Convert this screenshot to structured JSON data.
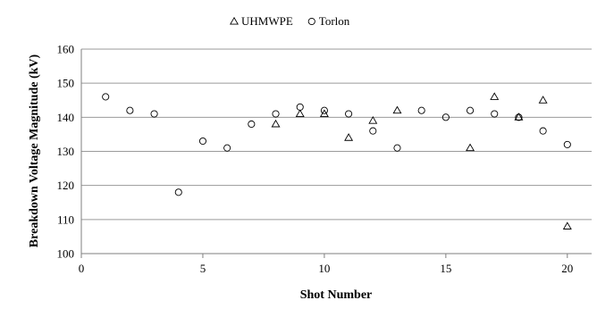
{
  "chart_data": {
    "type": "scatter",
    "title": "",
    "xlabel": "Shot Number",
    "ylabel": "Breakdown Voltage Magnitude (kV)",
    "xlim": [
      0,
      21
    ],
    "ylim": [
      100,
      160
    ],
    "xticks": [
      0,
      5,
      10,
      15,
      20
    ],
    "yticks": [
      100,
      110,
      120,
      130,
      140,
      150,
      160
    ],
    "grid": "horizontal",
    "legend_position": "top-center",
    "series": [
      {
        "name": "UHMWPE",
        "marker": "triangle",
        "color": "#000000",
        "points": [
          {
            "x": 8,
            "y": 138
          },
          {
            "x": 9,
            "y": 141
          },
          {
            "x": 10,
            "y": 141
          },
          {
            "x": 11,
            "y": 134
          },
          {
            "x": 12,
            "y": 139
          },
          {
            "x": 13,
            "y": 142
          },
          {
            "x": 16,
            "y": 131
          },
          {
            "x": 17,
            "y": 146
          },
          {
            "x": 18,
            "y": 140
          },
          {
            "x": 19,
            "y": 145
          },
          {
            "x": 20,
            "y": 108
          }
        ]
      },
      {
        "name": "Torlon",
        "marker": "circle",
        "color": "#000000",
        "points": [
          {
            "x": 1,
            "y": 146
          },
          {
            "x": 2,
            "y": 142
          },
          {
            "x": 3,
            "y": 141
          },
          {
            "x": 4,
            "y": 118
          },
          {
            "x": 5,
            "y": 133
          },
          {
            "x": 6,
            "y": 131
          },
          {
            "x": 7,
            "y": 138
          },
          {
            "x": 8,
            "y": 141
          },
          {
            "x": 9,
            "y": 143
          },
          {
            "x": 10,
            "y": 142
          },
          {
            "x": 11,
            "y": 141
          },
          {
            "x": 12,
            "y": 136
          },
          {
            "x": 13,
            "y": 131
          },
          {
            "x": 14,
            "y": 142
          },
          {
            "x": 15,
            "y": 140
          },
          {
            "x": 16,
            "y": 142
          },
          {
            "x": 17,
            "y": 141
          },
          {
            "x": 18,
            "y": 140
          },
          {
            "x": 19,
            "y": 136
          },
          {
            "x": 20,
            "y": 132
          }
        ]
      }
    ]
  }
}
